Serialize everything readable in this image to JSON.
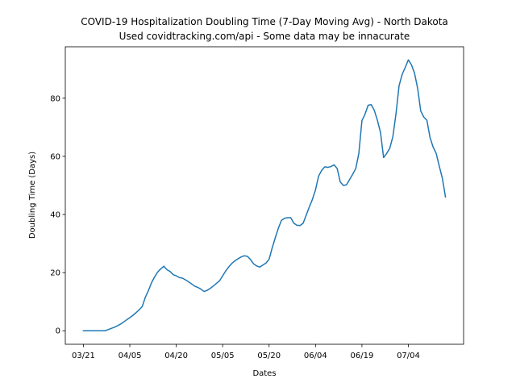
{
  "chart_data": {
    "type": "line",
    "title": "COVID-19 Hospitalization Doubling Time (7-Day Moving Avg) - North Dakota",
    "subtitle": "Used covidtracking.com/api - Some data may be innacurate",
    "x_label": "Dates",
    "y_label": "Doubling Time (Days)",
    "color": "#1f77b4",
    "categories": [
      "03/21",
      null,
      null,
      null,
      null,
      null,
      null,
      null,
      null,
      null,
      null,
      null,
      null,
      null,
      null,
      "04/05",
      null,
      null,
      null,
      null,
      null,
      null,
      null,
      null,
      null,
      null,
      null,
      null,
      null,
      null,
      "04/20",
      null,
      null,
      null,
      null,
      null,
      null,
      null,
      null,
      null,
      null,
      null,
      null,
      null,
      null,
      "05/05",
      null,
      null,
      null,
      null,
      null,
      null,
      null,
      null,
      null,
      null,
      null,
      null,
      null,
      null,
      "05/20",
      null,
      null,
      null,
      null,
      null,
      null,
      null,
      null,
      null,
      null,
      null,
      null,
      null,
      null,
      "06/04",
      null,
      null,
      null,
      null,
      null,
      null,
      null,
      null,
      null,
      null,
      null,
      null,
      null,
      null,
      "06/19",
      null,
      null,
      null,
      null,
      null,
      null,
      null,
      null,
      null,
      null,
      null,
      null,
      null,
      null,
      "07/04",
      null,
      null,
      null,
      null,
      null,
      null,
      null,
      null,
      null,
      null,
      null,
      null
    ],
    "values": [
      0,
      0,
      0,
      0,
      0,
      0,
      0,
      0,
      0.4,
      0.8,
      1.2,
      1.7,
      2.3,
      3.0,
      3.8,
      4.5,
      5.3,
      6.2,
      7.2,
      8.3,
      11.5,
      13.8,
      16.5,
      18.5,
      20.2,
      21.3,
      22.2,
      21.0,
      20.4,
      19.3,
      18.9,
      18.3,
      18.1,
      17.5,
      16.8,
      16.1,
      15.3,
      14.9,
      14.3,
      13.5,
      13.9,
      14.6,
      15.4,
      16.3,
      17.2,
      18.9,
      20.6,
      22.0,
      23.2,
      24.1,
      24.8,
      25.4,
      25.8,
      25.6,
      24.5,
      23.0,
      22.3,
      21.9,
      22.6,
      23.3,
      24.6,
      28.5,
      32.0,
      35.3,
      38.0,
      38.7,
      38.9,
      38.9,
      37.0,
      36.3,
      36.2,
      37.0,
      39.8,
      42.6,
      45.2,
      48.5,
      53.2,
      55.2,
      56.4,
      56.2,
      56.5,
      57.1,
      55.8,
      51.2,
      50.0,
      50.2,
      52.0,
      53.8,
      55.8,
      61.0,
      72.3,
      74.5,
      77.6,
      77.8,
      75.8,
      72.4,
      68.2,
      59.6,
      61.0,
      62.8,
      66.8,
      74.6,
      84.3,
      88.2,
      90.6,
      93.2,
      91.5,
      88.6,
      83.4,
      75.6,
      73.5,
      72.4,
      66.5,
      63.2,
      61.0,
      56.6,
      52.4,
      46.0
    ],
    "ylim": [
      -4.65,
      97.7
    ],
    "yticks": [
      0,
      20,
      40,
      60,
      80
    ]
  }
}
